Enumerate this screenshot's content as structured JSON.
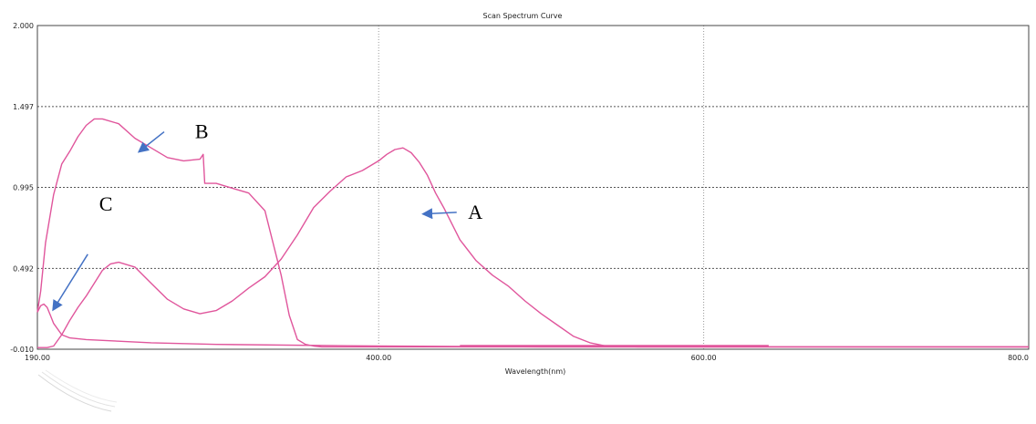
{
  "chart_data": {
    "type": "line",
    "title": "Scan Spectrum Curve",
    "xlabel": "Wavelength(nm)",
    "ylabel": "",
    "xlim": [
      190,
      800
    ],
    "ylim": [
      -0.01,
      2.0
    ],
    "x_ticks": [
      {
        "value": 190,
        "label": "190.00"
      },
      {
        "value": 400,
        "label": "400.00"
      },
      {
        "value": 600,
        "label": "600.00"
      },
      {
        "value": 800,
        "label": "800.0"
      }
    ],
    "y_ticks": [
      {
        "value": 2.0,
        "label": "2.000"
      },
      {
        "value": 1.497,
        "label": "1.497"
      },
      {
        "value": 0.995,
        "label": "0.995"
      },
      {
        "value": 0.492,
        "label": "0.492"
      },
      {
        "value": -0.01,
        "label": "-0.010"
      }
    ],
    "grid": true,
    "line_color": "#e0569c",
    "series": [
      {
        "label": "A",
        "x": [
          190,
          192,
          196,
          200,
          205,
          210,
          215,
          220,
          225,
          230,
          235,
          240,
          250,
          260,
          270,
          280,
          290,
          300,
          310,
          320,
          330,
          340,
          350,
          360,
          370,
          380,
          390,
          400,
          405,
          410,
          415,
          420,
          425,
          430,
          435,
          440,
          450,
          460,
          470,
          480,
          490,
          500,
          510,
          520,
          530,
          540,
          560,
          600,
          700,
          800
        ],
        "y": [
          0.0,
          0.0,
          0.0,
          0.01,
          0.08,
          0.17,
          0.25,
          0.32,
          0.4,
          0.48,
          0.52,
          0.53,
          0.5,
          0.4,
          0.3,
          0.24,
          0.21,
          0.23,
          0.29,
          0.37,
          0.44,
          0.55,
          0.7,
          0.87,
          0.97,
          1.06,
          1.1,
          1.16,
          1.2,
          1.23,
          1.24,
          1.21,
          1.15,
          1.07,
          0.96,
          0.87,
          0.67,
          0.54,
          0.45,
          0.38,
          0.29,
          0.21,
          0.14,
          0.07,
          0.03,
          0.01,
          0.005,
          0.005,
          0.005,
          0.005
        ]
      },
      {
        "label": "B",
        "x": [
          190,
          192,
          195,
          200,
          205,
          210,
          215,
          220,
          225,
          230,
          240,
          250,
          260,
          270,
          280,
          290,
          292,
          293,
          300,
          310,
          320,
          330,
          340,
          345,
          350,
          355,
          360,
          365,
          380,
          400,
          500,
          600,
          700,
          800
        ],
        "y": [
          0.22,
          0.35,
          0.65,
          0.95,
          1.14,
          1.22,
          1.31,
          1.38,
          1.42,
          1.42,
          1.39,
          1.3,
          1.24,
          1.18,
          1.16,
          1.17,
          1.2,
          1.02,
          1.02,
          0.99,
          0.96,
          0.85,
          0.45,
          0.2,
          0.05,
          0.02,
          0.01,
          0.005,
          0.005,
          0.005,
          0.005,
          0.005,
          0.005,
          0.005
        ]
      },
      {
        "label": "C",
        "x": [
          190,
          192,
          194,
          196,
          198,
          200,
          205,
          210,
          220,
          240,
          260,
          300,
          400,
          500,
          600,
          700,
          800
        ],
        "y": [
          0.22,
          0.26,
          0.27,
          0.25,
          0.2,
          0.15,
          0.08,
          0.06,
          0.05,
          0.04,
          0.03,
          0.02,
          0.01,
          0.005,
          0.005,
          0.005,
          0.005
        ]
      }
    ],
    "annotations": [
      {
        "label": "A",
        "series": "A",
        "text_at": [
          455,
          0.8
        ],
        "arrow_from": [
          448,
          0.84
        ],
        "arrow_to": [
          428,
          0.83
        ]
      },
      {
        "label": "B",
        "series": "B",
        "text_at": [
          287,
          1.3
        ],
        "arrow_from": [
          268,
          1.34
        ],
        "arrow_to": [
          253,
          1.22
        ]
      },
      {
        "label": "C",
        "series": "C",
        "text_at": [
          228,
          0.85
        ],
        "arrow_from": [
          221,
          0.58
        ],
        "arrow_to": [
          200,
          0.24
        ]
      }
    ]
  }
}
